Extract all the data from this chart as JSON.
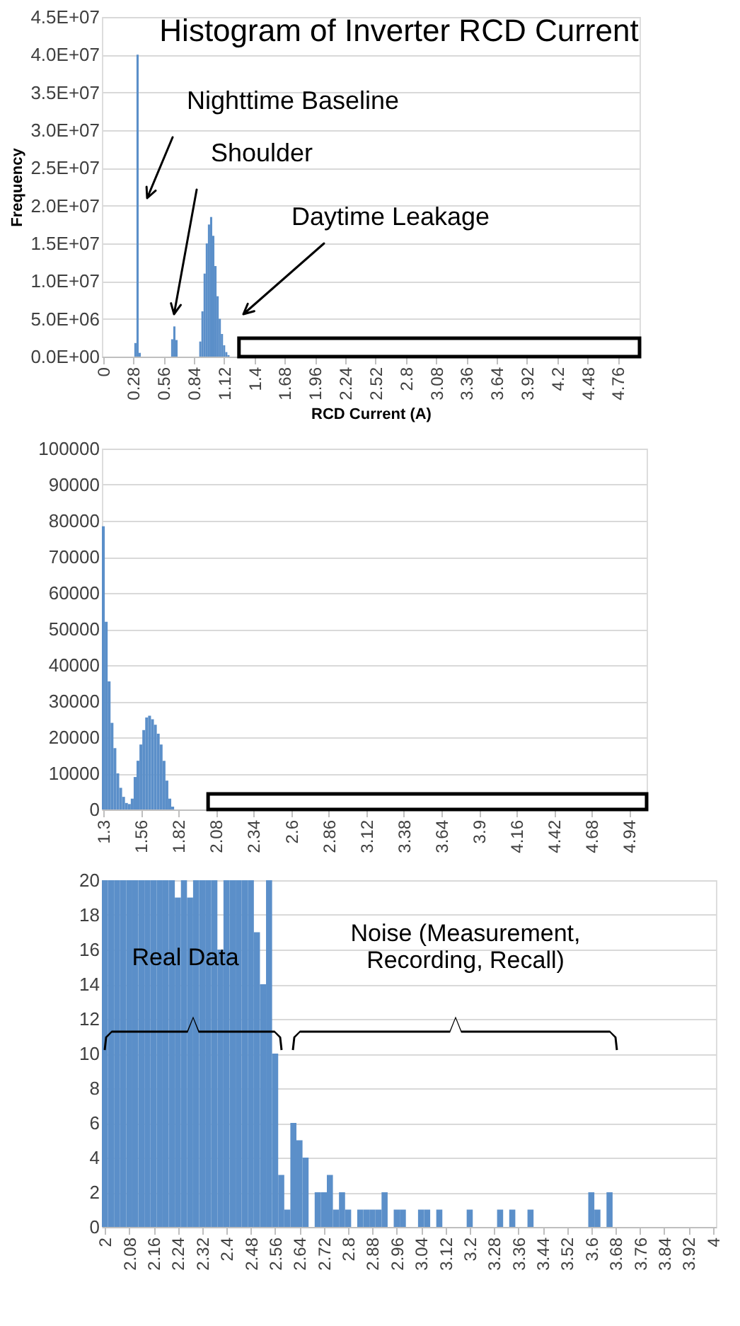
{
  "chart_data": [
    {
      "type": "histogram",
      "title": "Histogram of Inverter RCD Current",
      "xlabel": "RCD Current (A)",
      "ylabel": "Frequency",
      "color": "#5b8fc9",
      "grid": "y",
      "bins": [
        0.29,
        0.31,
        0.33,
        0.35,
        0.63,
        0.65,
        0.67,
        0.69,
        0.89,
        0.91,
        0.93,
        0.95,
        0.97,
        0.99,
        1.01,
        1.03,
        1.05,
        1.07,
        1.09,
        1.11,
        1.13,
        1.15,
        1.17
      ],
      "values": [
        1800000,
        40000000,
        500000,
        0,
        2300000,
        4000000,
        2200000,
        0,
        2000000,
        6000000,
        11000000,
        15000000,
        17500000,
        18500000,
        16000000,
        12000000,
        8000000,
        5000000,
        3000000,
        1500000,
        600000,
        200000
      ],
      "xlim": [
        -0.01,
        4.96
      ],
      "xticks": [
        0,
        0.28,
        0.56,
        0.84,
        1.12,
        1.4,
        1.68,
        1.96,
        2.24,
        2.52,
        2.8,
        3.08,
        3.36,
        3.64,
        3.92,
        4.2,
        4.48,
        4.76
      ],
      "ylim": [
        0,
        45000000
      ],
      "yticks": [
        {
          "value": 0,
          "label": "0.0E+00"
        },
        {
          "value": 5000000,
          "label": "5.0E+06"
        },
        {
          "value": 10000000,
          "label": "1.0E+07"
        },
        {
          "value": 15000000,
          "label": "1.5E+07"
        },
        {
          "value": 20000000,
          "label": "2.0E+07"
        },
        {
          "value": 25000000,
          "label": "2.5E+07"
        },
        {
          "value": 30000000,
          "label": "3.0E+07"
        },
        {
          "value": 35000000,
          "label": "3.5E+07"
        },
        {
          "value": 40000000,
          "label": "4.0E+07"
        },
        {
          "value": 45000000,
          "label": "4.5E+07"
        }
      ],
      "annotations": [
        "Nighttime Baseline",
        "Shoulder",
        "Daytime Leakage"
      ]
    },
    {
      "type": "histogram",
      "color": "#5b8fc9",
      "grid": "y",
      "bins": [
        1.29,
        1.31,
        1.33,
        1.35,
        1.37,
        1.39,
        1.41,
        1.43,
        1.45,
        1.47,
        1.49,
        1.51,
        1.53,
        1.55,
        1.57,
        1.59,
        1.61,
        1.63,
        1.65,
        1.67,
        1.69,
        1.71,
        1.73,
        1.75,
        1.77,
        1.79
      ],
      "values": [
        78500,
        52000,
        35500,
        24000,
        17000,
        10000,
        6000,
        3500,
        1800,
        1500,
        3000,
        9000,
        13500,
        18000,
        22000,
        25500,
        26000,
        25000,
        23500,
        21000,
        18000,
        13500,
        8000,
        3000,
        800
      ],
      "xlim": [
        1.29,
        5.06
      ],
      "xticks": [
        1.3,
        1.56,
        1.82,
        2.08,
        2.34,
        2.6,
        2.86,
        3.12,
        3.38,
        3.64,
        3.9,
        4.16,
        4.42,
        4.68,
        4.94
      ],
      "ylim": [
        0,
        100000
      ],
      "yticks": [
        0,
        10000,
        20000,
        30000,
        40000,
        50000,
        60000,
        70000,
        80000,
        90000,
        100000
      ]
    },
    {
      "type": "histogram",
      "color": "#5b8fc9",
      "grid": "y",
      "bins": [
        1.99,
        2.01,
        2.03,
        2.05,
        2.07,
        2.09,
        2.11,
        2.13,
        2.15,
        2.17,
        2.19,
        2.21,
        2.23,
        2.25,
        2.27,
        2.29,
        2.31,
        2.33,
        2.35,
        2.37,
        2.39,
        2.41,
        2.43,
        2.45,
        2.47,
        2.49,
        2.51,
        2.53,
        2.55,
        2.57,
        2.59,
        2.61,
        2.63,
        2.65,
        2.67,
        2.69,
        2.71,
        2.73,
        2.75,
        2.77,
        2.79,
        2.81,
        2.83,
        2.85,
        2.87,
        2.89,
        2.91,
        2.93,
        2.95,
        2.97,
        2.99,
        3.03,
        3.05,
        3.07,
        3.09,
        3.11,
        3.19,
        3.21,
        3.29,
        3.31,
        3.33,
        3.35,
        3.39,
        3.41,
        3.59,
        3.61,
        3.63,
        3.65,
        3.67
      ],
      "values": [
        20,
        20,
        20,
        20,
        20,
        20,
        20,
        20,
        20,
        20,
        20,
        20,
        19,
        20,
        19,
        20,
        20,
        20,
        20,
        16,
        20,
        20,
        20,
        20,
        20,
        17,
        14,
        20,
        10,
        3,
        1,
        6,
        5,
        4,
        0,
        2,
        2,
        3,
        1,
        2,
        1,
        0,
        1,
        1,
        1,
        1,
        2,
        0,
        1,
        1,
        0,
        1,
        1,
        0,
        1,
        0,
        1,
        0,
        1,
        0,
        1,
        0,
        1,
        0,
        2,
        1,
        0,
        2
      ],
      "xlim": [
        1.99,
        4.01
      ],
      "xticks": [
        2,
        2.08,
        2.16,
        2.24,
        2.32,
        2.4,
        2.48,
        2.56,
        2.64,
        2.72,
        2.8,
        2.88,
        2.96,
        3.04,
        3.12,
        3.2,
        3.28,
        3.36,
        3.44,
        3.52,
        3.6,
        3.68,
        3.76,
        3.84,
        3.92,
        4
      ],
      "ylim": [
        0,
        20
      ],
      "yticks": [
        0,
        2,
        4,
        6,
        8,
        10,
        12,
        14,
        16,
        18,
        20
      ],
      "annotations": [
        "Real Data",
        "Noise (Measurement, Recording, Recall)"
      ]
    }
  ]
}
